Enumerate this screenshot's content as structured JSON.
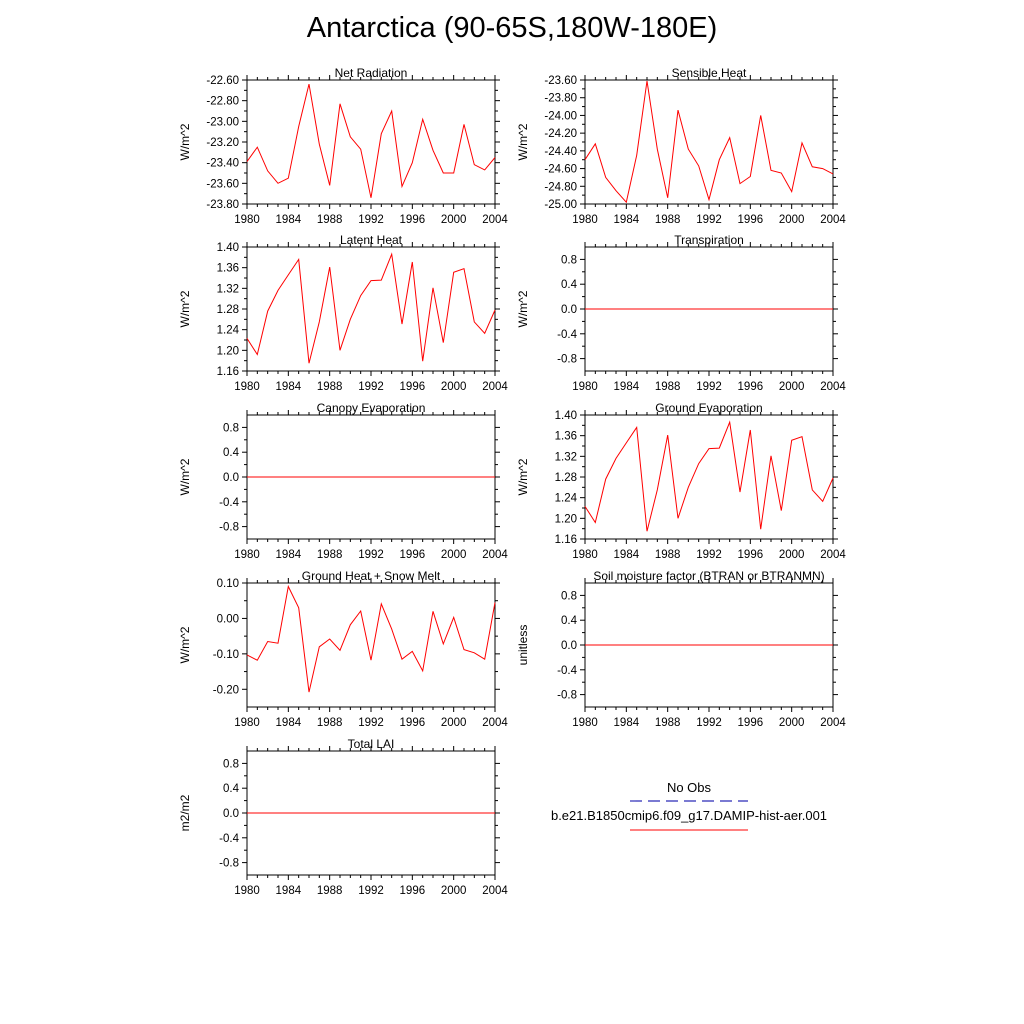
{
  "title": "Antarctica (90-65S,180W-180E)",
  "colors": {
    "model": "#ff0000",
    "obs": "#2b2bb8"
  },
  "legend": {
    "obs_label": "No Obs",
    "model_label": "b.e21.B1850cmip6.f09_g17.DAMIP-hist-aer.001"
  },
  "chart_data": [
    {
      "type": "line",
      "title": "Net Radiation",
      "ylabel": "W/m^2",
      "xlim": [
        1980,
        2004
      ],
      "ylim": [
        -23.8,
        -22.6
      ],
      "xticks": [
        1980,
        1984,
        1988,
        1992,
        1996,
        2000,
        2004
      ],
      "yticks": [
        -23.8,
        -23.6,
        -23.4,
        -23.2,
        -23.0,
        -22.8,
        -22.6
      ],
      "ytick_labels": [
        "-23.80",
        "-23.60",
        "-23.40",
        "-23.20",
        "-23.00",
        "-22.80",
        "-22.60"
      ],
      "series": [
        {
          "x": [
            1980,
            1981,
            1982,
            1983,
            1984,
            1985,
            1986,
            1987,
            1988,
            1989,
            1990,
            1991,
            1992,
            1993,
            1994,
            1995,
            1996,
            1997,
            1998,
            1999,
            2000,
            2001,
            2002,
            2003,
            2004
          ],
          "y": [
            -23.39,
            -23.25,
            -23.48,
            -23.6,
            -23.55,
            -23.05,
            -22.64,
            -23.22,
            -23.62,
            -22.83,
            -23.15,
            -23.27,
            -23.74,
            -23.12,
            -22.9,
            -23.63,
            -23.4,
            -22.98,
            -23.28,
            -23.5,
            -23.5,
            -23.03,
            -23.42,
            -23.47,
            -23.35
          ]
        }
      ]
    },
    {
      "type": "line",
      "title": "Sensible Heat",
      "ylabel": "W/m^2",
      "xlim": [
        1980,
        2004
      ],
      "ylim": [
        -25.0,
        -23.6
      ],
      "xticks": [
        1980,
        1984,
        1988,
        1992,
        1996,
        2000,
        2004
      ],
      "yticks": [
        -25.0,
        -24.8,
        -24.6,
        -24.4,
        -24.2,
        -24.0,
        -23.8,
        -23.6
      ],
      "ytick_labels": [
        "-25.00",
        "-24.80",
        "-24.60",
        "-24.40",
        "-24.20",
        "-24.00",
        "-23.80",
        "-23.60"
      ],
      "series": [
        {
          "x": [
            1980,
            1981,
            1982,
            1983,
            1984,
            1985,
            1986,
            1987,
            1988,
            1989,
            1990,
            1991,
            1992,
            1993,
            1994,
            1995,
            1996,
            1997,
            1998,
            1999,
            2000,
            2001,
            2002,
            2003,
            2004
          ],
          "y": [
            -24.5,
            -24.32,
            -24.7,
            -24.85,
            -24.98,
            -24.45,
            -23.61,
            -24.38,
            -24.93,
            -23.94,
            -24.38,
            -24.57,
            -24.95,
            -24.5,
            -24.25,
            -24.77,
            -24.69,
            -24.0,
            -24.62,
            -24.65,
            -24.86,
            -24.31,
            -24.58,
            -24.6,
            -24.66
          ]
        }
      ]
    },
    {
      "type": "line",
      "title": "Latent Heat",
      "ylabel": "W/m^2",
      "xlim": [
        1980,
        2004
      ],
      "ylim": [
        1.16,
        1.4
      ],
      "xticks": [
        1980,
        1984,
        1988,
        1992,
        1996,
        2000,
        2004
      ],
      "yticks": [
        1.16,
        1.2,
        1.24,
        1.28,
        1.32,
        1.36,
        1.4
      ],
      "ytick_labels": [
        "1.16",
        "1.20",
        "1.24",
        "1.28",
        "1.32",
        "1.36",
        "1.40"
      ],
      "series": [
        {
          "x": [
            1980,
            1981,
            1982,
            1983,
            1984,
            1985,
            1986,
            1987,
            1988,
            1989,
            1990,
            1991,
            1992,
            1993,
            1994,
            1995,
            1996,
            1997,
            1998,
            1999,
            2000,
            2001,
            2002,
            2003,
            2004
          ],
          "y": [
            1.223,
            1.192,
            1.276,
            1.316,
            1.346,
            1.376,
            1.175,
            1.255,
            1.361,
            1.2,
            1.26,
            1.306,
            1.335,
            1.336,
            1.386,
            1.251,
            1.371,
            1.179,
            1.321,
            1.215,
            1.351,
            1.358,
            1.255,
            1.233,
            1.278
          ]
        }
      ]
    },
    {
      "type": "line",
      "title": "Transpiration",
      "ylabel": "W/m^2",
      "xlim": [
        1980,
        2004
      ],
      "ylim": [
        -1.0,
        1.0
      ],
      "xticks": [
        1980,
        1984,
        1988,
        1992,
        1996,
        2000,
        2004
      ],
      "yticks": [
        -0.8,
        -0.4,
        0.0,
        0.4,
        0.8
      ],
      "ytick_labels": [
        "-0.8",
        "-0.4",
        "0.0",
        "0.4",
        "0.8"
      ],
      "series": [
        {
          "x": [
            1980,
            1981,
            1982,
            1983,
            1984,
            1985,
            1986,
            1987,
            1988,
            1989,
            1990,
            1991,
            1992,
            1993,
            1994,
            1995,
            1996,
            1997,
            1998,
            1999,
            2000,
            2001,
            2002,
            2003,
            2004
          ],
          "y": [
            0,
            0,
            0,
            0,
            0,
            0,
            0,
            0,
            0,
            0,
            0,
            0,
            0,
            0,
            0,
            0,
            0,
            0,
            0,
            0,
            0,
            0,
            0,
            0,
            0
          ]
        }
      ]
    },
    {
      "type": "line",
      "title": "Canopy Evaporation",
      "ylabel": "W/m^2",
      "xlim": [
        1980,
        2004
      ],
      "ylim": [
        -1.0,
        1.0
      ],
      "xticks": [
        1980,
        1984,
        1988,
        1992,
        1996,
        2000,
        2004
      ],
      "yticks": [
        -0.8,
        -0.4,
        0.0,
        0.4,
        0.8
      ],
      "ytick_labels": [
        "-0.8",
        "-0.4",
        "0.0",
        "0.4",
        "0.8"
      ],
      "series": [
        {
          "x": [
            1980,
            1981,
            1982,
            1983,
            1984,
            1985,
            1986,
            1987,
            1988,
            1989,
            1990,
            1991,
            1992,
            1993,
            1994,
            1995,
            1996,
            1997,
            1998,
            1999,
            2000,
            2001,
            2002,
            2003,
            2004
          ],
          "y": [
            0,
            0,
            0,
            0,
            0,
            0,
            0,
            0,
            0,
            0,
            0,
            0,
            0,
            0,
            0,
            0,
            0,
            0,
            0,
            0,
            0,
            0,
            0,
            0,
            0
          ]
        }
      ]
    },
    {
      "type": "line",
      "title": "Ground Evaporation",
      "ylabel": "W/m^2",
      "xlim": [
        1980,
        2004
      ],
      "ylim": [
        1.16,
        1.4
      ],
      "xticks": [
        1980,
        1984,
        1988,
        1992,
        1996,
        2000,
        2004
      ],
      "yticks": [
        1.16,
        1.2,
        1.24,
        1.28,
        1.32,
        1.36,
        1.4
      ],
      "ytick_labels": [
        "1.16",
        "1.20",
        "1.24",
        "1.28",
        "1.32",
        "1.36",
        "1.40"
      ],
      "series": [
        {
          "x": [
            1980,
            1981,
            1982,
            1983,
            1984,
            1985,
            1986,
            1987,
            1988,
            1989,
            1990,
            1991,
            1992,
            1993,
            1994,
            1995,
            1996,
            1997,
            1998,
            1999,
            2000,
            2001,
            2002,
            2003,
            2004
          ],
          "y": [
            1.223,
            1.192,
            1.276,
            1.316,
            1.346,
            1.376,
            1.175,
            1.255,
            1.361,
            1.2,
            1.26,
            1.306,
            1.335,
            1.336,
            1.386,
            1.251,
            1.371,
            1.179,
            1.321,
            1.215,
            1.351,
            1.358,
            1.255,
            1.233,
            1.278
          ]
        }
      ]
    },
    {
      "type": "line",
      "title": "Ground Heat + Snow Melt",
      "ylabel": "W/m^2",
      "xlim": [
        1980,
        2004
      ],
      "ylim": [
        -0.25,
        0.1
      ],
      "xticks": [
        1980,
        1984,
        1988,
        1992,
        1996,
        2000,
        2004
      ],
      "yticks": [
        -0.2,
        -0.1,
        0.0,
        0.1
      ],
      "ytick_labels": [
        "-0.20",
        "-0.10",
        "0.00",
        "0.10"
      ],
      "series": [
        {
          "x": [
            1980,
            1981,
            1982,
            1983,
            1984,
            1985,
            1986,
            1987,
            1988,
            1989,
            1990,
            1991,
            1992,
            1993,
            1994,
            1995,
            1996,
            1997,
            1998,
            1999,
            2000,
            2001,
            2002,
            2003,
            2004
          ],
          "y": [
            -0.103,
            -0.118,
            -0.065,
            -0.07,
            0.09,
            0.03,
            -0.208,
            -0.08,
            -0.058,
            -0.09,
            -0.018,
            0.021,
            -0.118,
            0.041,
            -0.03,
            -0.115,
            -0.093,
            -0.148,
            0.02,
            -0.072,
            0.003,
            -0.088,
            -0.097,
            -0.115,
            0.045
          ]
        }
      ]
    },
    {
      "type": "line",
      "title": "Soil moisture factor (BTRAN or BTRANMN)",
      "ylabel": "unitless",
      "xlim": [
        1980,
        2004
      ],
      "ylim": [
        -1.0,
        1.0
      ],
      "xticks": [
        1980,
        1984,
        1988,
        1992,
        1996,
        2000,
        2004
      ],
      "yticks": [
        -0.8,
        -0.4,
        0.0,
        0.4,
        0.8
      ],
      "ytick_labels": [
        "-0.8",
        "-0.4",
        "0.0",
        "0.4",
        "0.8"
      ],
      "series": [
        {
          "x": [
            1980,
            1981,
            1982,
            1983,
            1984,
            1985,
            1986,
            1987,
            1988,
            1989,
            1990,
            1991,
            1992,
            1993,
            1994,
            1995,
            1996,
            1997,
            1998,
            1999,
            2000,
            2001,
            2002,
            2003,
            2004
          ],
          "y": [
            0,
            0,
            0,
            0,
            0,
            0,
            0,
            0,
            0,
            0,
            0,
            0,
            0,
            0,
            0,
            0,
            0,
            0,
            0,
            0,
            0,
            0,
            0,
            0,
            0
          ]
        }
      ]
    },
    {
      "type": "line",
      "title": "Total LAI",
      "ylabel": "m2/m2",
      "xlim": [
        1980,
        2004
      ],
      "ylim": [
        -1.0,
        1.0
      ],
      "xticks": [
        1980,
        1984,
        1988,
        1992,
        1996,
        2000,
        2004
      ],
      "yticks": [
        -0.8,
        -0.4,
        0.0,
        0.4,
        0.8
      ],
      "ytick_labels": [
        "-0.8",
        "-0.4",
        "0.0",
        "0.4",
        "0.8"
      ],
      "series": [
        {
          "x": [
            1980,
            1981,
            1982,
            1983,
            1984,
            1985,
            1986,
            1987,
            1988,
            1989,
            1990,
            1991,
            1992,
            1993,
            1994,
            1995,
            1996,
            1997,
            1998,
            1999,
            2000,
            2001,
            2002,
            2003,
            2004
          ],
          "y": [
            0,
            0,
            0,
            0,
            0,
            0,
            0,
            0,
            0,
            0,
            0,
            0,
            0,
            0,
            0,
            0,
            0,
            0,
            0,
            0,
            0,
            0,
            0,
            0,
            0
          ]
        }
      ]
    }
  ]
}
